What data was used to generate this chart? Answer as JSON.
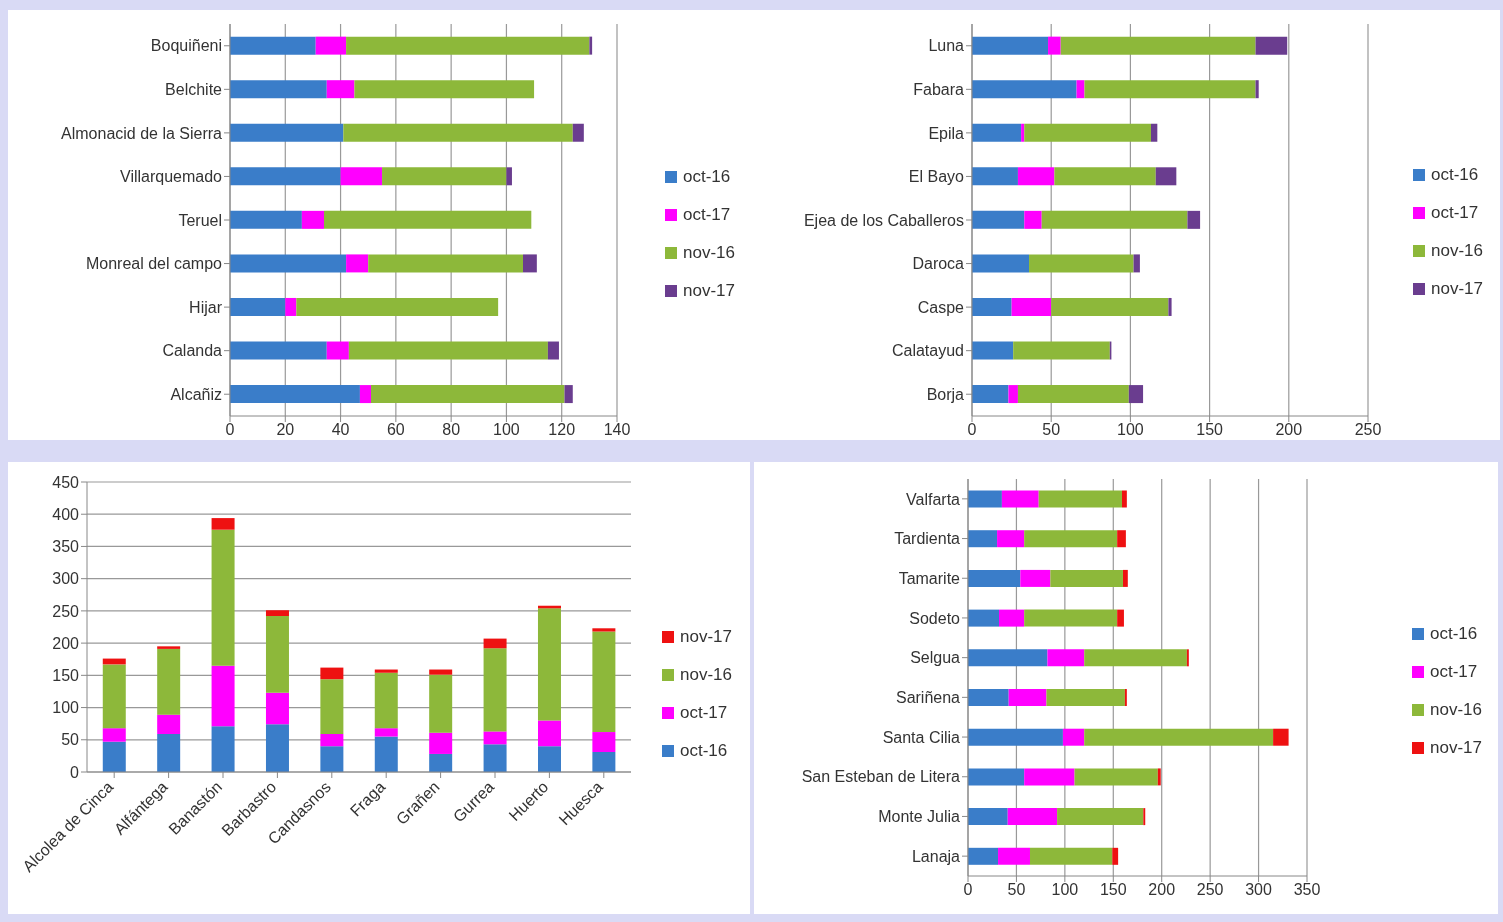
{
  "chart_data": [
    {
      "type": "bar",
      "orientation": "horizontal",
      "stacked": true,
      "categories": [
        "Boquiñeni",
        "Belchite",
        "Almonacid de la Sierra",
        "Villarquemado",
        "Teruel",
        "Monreal del campo",
        "Hijar",
        "Calanda",
        "Alcañiz"
      ],
      "series": [
        {
          "name": "oct-16",
          "color": "#3a7dc9",
          "values": [
            31,
            35,
            41,
            40,
            26,
            42,
            20,
            35,
            47
          ]
        },
        {
          "name": "oct-17",
          "color": "#ff00ff",
          "values": [
            11,
            10,
            0,
            15,
            8,
            8,
            4,
            8,
            4
          ]
        },
        {
          "name": "nov-16",
          "color": "#8db83a",
          "values": [
            88,
            65,
            83,
            45,
            75,
            56,
            73,
            72,
            70
          ]
        },
        {
          "name": "nov-17",
          "color": "#6a3d8f",
          "values": [
            1,
            0,
            4,
            2,
            0,
            5,
            0,
            4,
            3
          ]
        }
      ],
      "xlim": [
        0,
        140
      ],
      "xticks": [
        0,
        20,
        40,
        60,
        80,
        100,
        120,
        140
      ],
      "grid": "x",
      "legend": "right"
    },
    {
      "type": "bar",
      "orientation": "horizontal",
      "stacked": true,
      "categories": [
        "Luna",
        "Fabara",
        "Epila",
        "El Bayo",
        "Ejea de los Caballeros",
        "Daroca",
        "Caspe",
        "Calatayud",
        "Borja"
      ],
      "series": [
        {
          "name": "oct-16",
          "color": "#3a7dc9",
          "values": [
            48,
            66,
            31,
            29,
            33,
            36,
            25,
            26,
            23
          ]
        },
        {
          "name": "oct-17",
          "color": "#ff00ff",
          "values": [
            8,
            5,
            2,
            23,
            11,
            0,
            25,
            0,
            6
          ]
        },
        {
          "name": "nov-16",
          "color": "#8db83a",
          "values": [
            123,
            108,
            80,
            64,
            92,
            66,
            74,
            61,
            70
          ]
        },
        {
          "name": "nov-17",
          "color": "#6a3d8f",
          "values": [
            20,
            2,
            4,
            13,
            8,
            4,
            2,
            1,
            9
          ]
        }
      ],
      "xlim": [
        0,
        250
      ],
      "xticks": [
        0,
        50,
        100,
        150,
        200,
        250
      ],
      "grid": "x",
      "legend": "right"
    },
    {
      "type": "bar",
      "stacked": true,
      "categories": [
        "Alcolea de Cinca",
        "Alfántega",
        "Banastón",
        "Barbastro",
        "Candasnos",
        "Fraga",
        "Grañen",
        "Gurrea",
        "Huerto",
        "Huesca"
      ],
      "series": [
        {
          "name": "oct-16",
          "color": "#3a7dc9",
          "values": [
            47,
            59,
            71,
            74,
            40,
            55,
            28,
            43,
            40,
            31
          ]
        },
        {
          "name": "oct-17",
          "color": "#ff00ff",
          "values": [
            21,
            30,
            94,
            49,
            19,
            13,
            33,
            20,
            40,
            31
          ]
        },
        {
          "name": "nov-16",
          "color": "#8db83a",
          "values": [
            99,
            102,
            211,
            119,
            85,
            86,
            90,
            129,
            174,
            156
          ]
        },
        {
          "name": "nov-17",
          "color": "#ee1111",
          "values": [
            9,
            4,
            18,
            9,
            18,
            5,
            8,
            15,
            4,
            5
          ]
        }
      ],
      "ylim": [
        0,
        450
      ],
      "yticks": [
        0,
        50,
        100,
        150,
        200,
        250,
        300,
        350,
        400,
        450
      ],
      "grid": "y",
      "legend": "right"
    },
    {
      "type": "bar",
      "orientation": "horizontal",
      "stacked": true,
      "categories": [
        "Valfarta",
        "Tardienta",
        "Tamarite",
        "Sodeto",
        "Selgua",
        "Sariñena",
        "Santa Cilia",
        "San Esteban de Litera",
        "Monte Julia",
        "Lanaja"
      ],
      "series": [
        {
          "name": "oct-16",
          "color": "#3a7dc9",
          "values": [
            35,
            30,
            54,
            32,
            82,
            42,
            98,
            58,
            41,
            31
          ]
        },
        {
          "name": "oct-17",
          "color": "#ff00ff",
          "values": [
            38,
            28,
            31,
            26,
            38,
            39,
            22,
            52,
            51,
            33
          ]
        },
        {
          "name": "nov-16",
          "color": "#8db83a",
          "values": [
            86,
            96,
            75,
            96,
            106,
            81,
            195,
            86,
            89,
            85
          ]
        },
        {
          "name": "nov-17",
          "color": "#ee1111",
          "values": [
            5,
            9,
            5,
            7,
            2,
            2,
            16,
            3,
            2,
            6
          ]
        }
      ],
      "xlim": [
        0,
        350
      ],
      "xticks": [
        0,
        50,
        100,
        150,
        200,
        250,
        300,
        350
      ],
      "grid": "x",
      "legend": "right"
    }
  ]
}
